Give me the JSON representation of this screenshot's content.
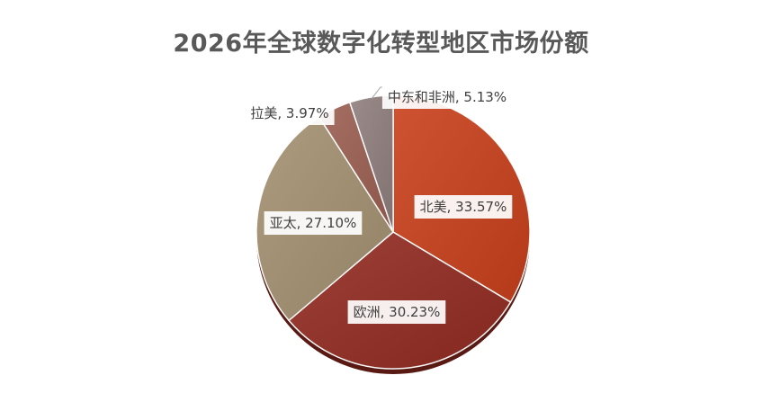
{
  "chart_data": {
    "type": "pie",
    "title": "2026年全球数字化转型地区市场份额",
    "slices": [
      {
        "name": "北美",
        "value": 33.57,
        "label": "北美, 33.57%",
        "color": "#c8401c"
      },
      {
        "name": "欧洲",
        "value": 30.23,
        "label": "欧洲, 30.23%",
        "color": "#922b22"
      },
      {
        "name": "亚太",
        "value": 27.1,
        "label": "亚太, 27.10%",
        "color": "#a39071"
      },
      {
        "name": "拉美",
        "value": 3.97,
        "label": "拉美, 3.97%",
        "color": "#9c5f52"
      },
      {
        "name": "中东和非洲",
        "value": 5.13,
        "label": "中东和非洲, 5.13%",
        "color": "#8f7f7d"
      }
    ],
    "start_angle": "12 o'clock",
    "direction": "clockwise",
    "legend": "none"
  }
}
